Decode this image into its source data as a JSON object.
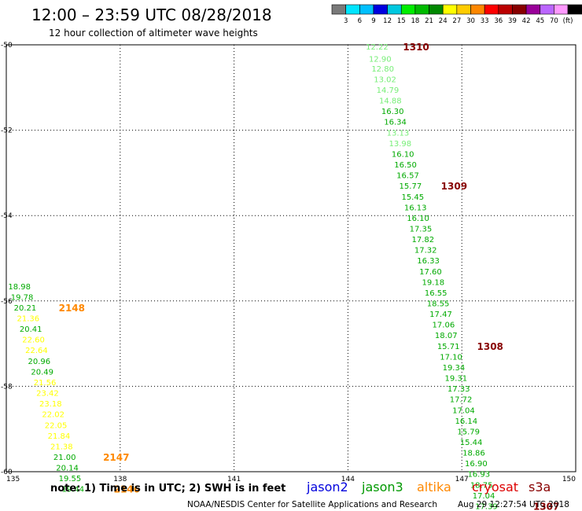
{
  "header": {
    "title": "12:00 – 23:59 UTC 08/28/2018",
    "subtitle": "12 hour collection of altimeter wave heights"
  },
  "colorbar": {
    "labels": [
      "3",
      "6",
      "9",
      "12",
      "15",
      "18",
      "21",
      "24",
      "27",
      "30",
      "33",
      "36",
      "39",
      "42",
      "45",
      "70",
      "(ft)"
    ],
    "colors": [
      "#7a7a7a",
      "#00e5ff",
      "#00c0ff",
      "#0000e0",
      "#00c8e0",
      "#00ee00",
      "#00bb00",
      "#008800",
      "#ffff00",
      "#ffcc00",
      "#ff8800",
      "#ff0000",
      "#bb0000",
      "#880000",
      "#990099",
      "#bb66ff",
      "#ff99ff",
      "#000000"
    ]
  },
  "footer": {
    "note": "note:  1) Time is in UTC;  2) SWH is in feet",
    "credit": "NOAA/NESDIS Center for Satellite Applications and Research",
    "timestamp": "Aug 29 12:27:54 UTC 2018"
  },
  "satellites": [
    {
      "name": "jason2",
      "color": "#0000dd"
    },
    {
      "name": "jason3",
      "color": "#009900"
    },
    {
      "name": "altika",
      "color": "#ff8800"
    },
    {
      "name": "cryosat",
      "color": "#dd0000"
    },
    {
      "name": "s3a",
      "color": "#880000"
    }
  ],
  "chart_data": {
    "type": "scatter",
    "xlim": [
      135,
      150
    ],
    "ylim": [
      -60,
      -50
    ],
    "x_ticks": [
      "135",
      "138",
      "141",
      "144",
      "147",
      "150"
    ],
    "y_ticks": [
      "-50",
      "-52",
      "-54",
      "-56",
      "-58",
      "-60"
    ],
    "grid": true,
    "track_a": [
      {
        "x": 144.47,
        "y": -50.04,
        "v": "12.22",
        "c": "#77ee77"
      },
      {
        "x": 144.55,
        "y": -50.32,
        "v": "12.90",
        "c": "#77ee77"
      },
      {
        "x": 144.62,
        "y": -50.55,
        "v": "12.80",
        "c": "#77ee77"
      },
      {
        "x": 144.68,
        "y": -50.8,
        "v": "13.02",
        "c": "#77ee77"
      },
      {
        "x": 144.75,
        "y": -51.05,
        "v": "14.79",
        "c": "#77ee77"
      },
      {
        "x": 144.82,
        "y": -51.3,
        "v": "14.88",
        "c": "#77ee77"
      },
      {
        "x": 144.88,
        "y": -51.55,
        "v": "16.30",
        "c": "#00aa00"
      },
      {
        "x": 144.95,
        "y": -51.8,
        "v": "16.34",
        "c": "#00aa00"
      },
      {
        "x": 145.02,
        "y": -52.05,
        "v": "13.13",
        "c": "#77ee77"
      },
      {
        "x": 145.08,
        "y": -52.3,
        "v": "13.98",
        "c": "#77ee77"
      },
      {
        "x": 145.15,
        "y": -52.55,
        "v": "16.10",
        "c": "#00aa00"
      },
      {
        "x": 145.22,
        "y": -52.8,
        "v": "16.50",
        "c": "#00aa00"
      },
      {
        "x": 145.28,
        "y": -53.05,
        "v": "16.57",
        "c": "#00aa00"
      },
      {
        "x": 145.35,
        "y": -53.3,
        "v": "15.77",
        "c": "#00aa00"
      },
      {
        "x": 145.41,
        "y": -53.55,
        "v": "15.45",
        "c": "#00aa00"
      },
      {
        "x": 145.48,
        "y": -53.8,
        "v": "16.13",
        "c": "#00aa00"
      },
      {
        "x": 145.55,
        "y": -54.05,
        "v": "16.10",
        "c": "#00aa00"
      },
      {
        "x": 145.62,
        "y": -54.3,
        "v": "17.35",
        "c": "#00aa00"
      },
      {
        "x": 145.68,
        "y": -54.55,
        "v": "17.82",
        "c": "#00aa00"
      },
      {
        "x": 145.75,
        "y": -54.8,
        "v": "17.32",
        "c": "#00aa00"
      },
      {
        "x": 145.82,
        "y": -55.05,
        "v": "16.33",
        "c": "#00aa00"
      },
      {
        "x": 145.88,
        "y": -55.3,
        "v": "17.60",
        "c": "#00aa00"
      },
      {
        "x": 145.95,
        "y": -55.55,
        "v": "19.18",
        "c": "#00aa00"
      },
      {
        "x": 146.02,
        "y": -55.8,
        "v": "16.55",
        "c": "#00aa00"
      },
      {
        "x": 146.08,
        "y": -56.05,
        "v": "18.55",
        "c": "#00aa00"
      },
      {
        "x": 146.15,
        "y": -56.3,
        "v": "17.47",
        "c": "#00aa00"
      },
      {
        "x": 146.22,
        "y": -56.55,
        "v": "17.06",
        "c": "#00aa00"
      },
      {
        "x": 146.29,
        "y": -56.8,
        "v": "18.07",
        "c": "#00aa00"
      },
      {
        "x": 146.35,
        "y": -57.05,
        "v": "15.71",
        "c": "#00aa00"
      },
      {
        "x": 146.42,
        "y": -57.3,
        "v": "17.10",
        "c": "#00aa00"
      },
      {
        "x": 146.49,
        "y": -57.55,
        "v": "19.34",
        "c": "#00aa00"
      },
      {
        "x": 146.55,
        "y": -57.8,
        "v": "19.31",
        "c": "#00aa00"
      },
      {
        "x": 146.62,
        "y": -58.05,
        "v": "17.33",
        "c": "#00aa00"
      },
      {
        "x": 146.68,
        "y": -58.3,
        "v": "17.72",
        "c": "#00aa00"
      },
      {
        "x": 146.75,
        "y": -58.55,
        "v": "17.04",
        "c": "#00aa00"
      },
      {
        "x": 146.82,
        "y": -58.8,
        "v": "16.14",
        "c": "#00aa00"
      },
      {
        "x": 146.88,
        "y": -59.05,
        "v": "15.79",
        "c": "#00aa00"
      },
      {
        "x": 146.95,
        "y": -59.3,
        "v": "15.44",
        "c": "#00aa00"
      },
      {
        "x": 147.02,
        "y": -59.55,
        "v": "18.86",
        "c": "#00aa00"
      },
      {
        "x": 147.08,
        "y": -59.8,
        "v": "16.90",
        "c": "#00aa00"
      },
      {
        "x": 147.15,
        "y": -60.05,
        "v": "16.93",
        "c": "#00aa00"
      },
      {
        "x": 147.22,
        "y": -60.3,
        "v": "18.75",
        "c": "#00aa00"
      },
      {
        "x": 147.28,
        "y": -60.55,
        "v": "17.04",
        "c": "#00aa00"
      },
      {
        "x": 147.35,
        "y": -60.8,
        "v": "17.39",
        "c": "#00aa00"
      }
    ],
    "track_b": [
      {
        "x": 135.05,
        "y": -55.65,
        "v": "18.98",
        "c": "#00aa00"
      },
      {
        "x": 135.12,
        "y": -55.9,
        "v": "19.78",
        "c": "#00aa00"
      },
      {
        "x": 135.2,
        "y": -56.15,
        "v": "20.21",
        "c": "#00aa00"
      },
      {
        "x": 135.28,
        "y": -56.4,
        "v": "21.36",
        "c": "#ffff00"
      },
      {
        "x": 135.35,
        "y": -56.65,
        "v": "20.41",
        "c": "#00aa00"
      },
      {
        "x": 135.42,
        "y": -56.9,
        "v": "22.60",
        "c": "#ffff00"
      },
      {
        "x": 135.5,
        "y": -57.15,
        "v": "22.64",
        "c": "#ffff00"
      },
      {
        "x": 135.57,
        "y": -57.4,
        "v": "20.96",
        "c": "#00aa00"
      },
      {
        "x": 135.65,
        "y": -57.65,
        "v": "20.49",
        "c": "#00aa00"
      },
      {
        "x": 135.72,
        "y": -57.9,
        "v": "21.56",
        "c": "#ffff00"
      },
      {
        "x": 135.79,
        "y": -58.15,
        "v": "23.42",
        "c": "#ffff00"
      },
      {
        "x": 135.87,
        "y": -58.4,
        "v": "23.18",
        "c": "#ffff00"
      },
      {
        "x": 135.94,
        "y": -58.65,
        "v": "22.02",
        "c": "#ffff00"
      },
      {
        "x": 136.01,
        "y": -58.9,
        "v": "22.05",
        "c": "#ffff00"
      },
      {
        "x": 136.09,
        "y": -59.15,
        "v": "21.84",
        "c": "#ffff00"
      },
      {
        "x": 136.16,
        "y": -59.4,
        "v": "21.38",
        "c": "#ffff00"
      },
      {
        "x": 136.24,
        "y": -59.65,
        "v": "21.00",
        "c": "#00aa00"
      },
      {
        "x": 136.31,
        "y": -59.9,
        "v": "20.14",
        "c": "#00aa00"
      },
      {
        "x": 136.38,
        "y": -60.15,
        "v": "19.55",
        "c": "#00aa00"
      },
      {
        "x": 136.46,
        "y": -60.4,
        "v": "19.44",
        "c": "#00aa00"
      }
    ],
    "time_labels": [
      {
        "x": 145.45,
        "y": -50.04,
        "t": "1310",
        "c": "#880000"
      },
      {
        "x": 146.45,
        "y": -53.3,
        "t": "1309",
        "c": "#880000"
      },
      {
        "x": 147.4,
        "y": -57.05,
        "t": "1308",
        "c": "#880000"
      },
      {
        "x": 148.88,
        "y": -60.8,
        "t": "1307",
        "c": "#880000"
      },
      {
        "x": 136.38,
        "y": -56.15,
        "t": "2148",
        "c": "#ff8800"
      },
      {
        "x": 137.55,
        "y": -59.65,
        "t": "2147",
        "c": "#ff8800"
      },
      {
        "x": 137.83,
        "y": -60.4,
        "t": "2146",
        "c": "#ff8800"
      }
    ]
  }
}
